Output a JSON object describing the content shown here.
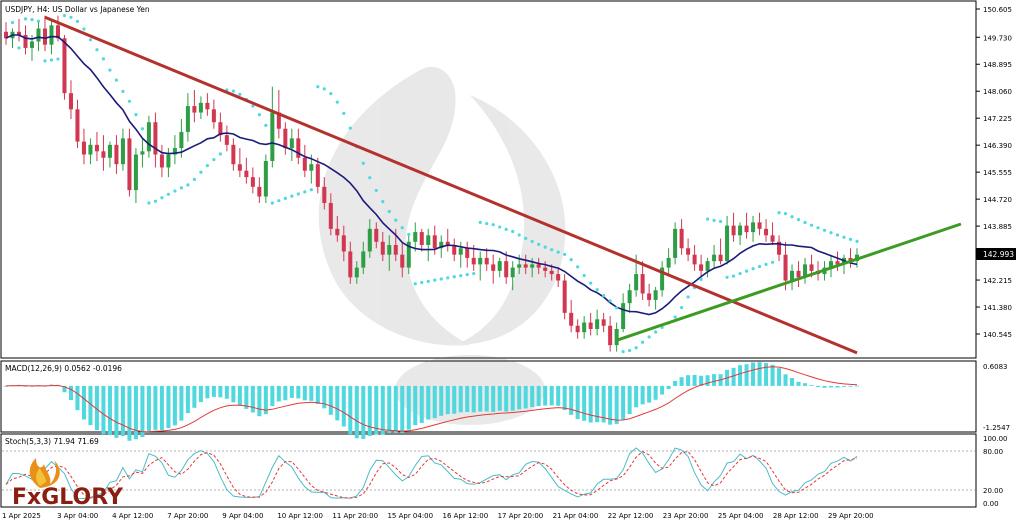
{
  "chart_data": [
    {
      "type": "candlestick",
      "title": "USDJPY, H4:  US Dollar vs Japanese Yen",
      "symbol": "USDJPY",
      "timeframe": "H4",
      "ylim": [
        139.96,
        150.605
      ],
      "y_ticks": [
        "150.605",
        "149.730",
        "148.895",
        "148.060",
        "147.225",
        "146.390",
        "145.555",
        "144.720",
        "143.885",
        "143.050",
        "142.215",
        "141.380",
        "140.545"
      ],
      "current_price": "142.993",
      "x_ticks": [
        "1 Apr 2025",
        "3 Apr 04:00",
        "4 Apr 12:00",
        "7 Apr 20:00",
        "9 Apr 04:00",
        "10 Apr 12:00",
        "11 Apr 20:00",
        "15 Apr 04:00",
        "16 Apr 12:00",
        "17 Apr 20:00",
        "21 Apr 04:00",
        "22 Apr 12:00",
        "23 Apr 20:00",
        "25 Apr 04:00",
        "28 Apr 12:00",
        "29 Apr 20:00"
      ],
      "candles": [
        {
          "o": 149.9,
          "h": 150.2,
          "l": 149.5,
          "c": 149.7
        },
        {
          "o": 149.7,
          "h": 150.0,
          "l": 149.4,
          "c": 149.9
        },
        {
          "o": 149.9,
          "h": 150.3,
          "l": 149.6,
          "c": 149.8
        },
        {
          "o": 149.8,
          "h": 150.1,
          "l": 149.2,
          "c": 149.4
        },
        {
          "o": 149.4,
          "h": 149.8,
          "l": 149.0,
          "c": 149.6
        },
        {
          "o": 149.6,
          "h": 150.2,
          "l": 149.3,
          "c": 150.0
        },
        {
          "o": 150.0,
          "h": 150.4,
          "l": 149.3,
          "c": 149.5
        },
        {
          "o": 149.5,
          "h": 150.3,
          "l": 149.2,
          "c": 150.1
        },
        {
          "o": 150.1,
          "h": 150.4,
          "l": 149.6,
          "c": 149.7
        },
        {
          "o": 149.7,
          "h": 149.8,
          "l": 147.8,
          "c": 148.0
        },
        {
          "o": 148.0,
          "h": 148.4,
          "l": 147.2,
          "c": 147.5
        },
        {
          "o": 147.5,
          "h": 147.8,
          "l": 146.3,
          "c": 146.5
        },
        {
          "o": 146.5,
          "h": 146.9,
          "l": 145.8,
          "c": 146.1
        },
        {
          "o": 146.1,
          "h": 146.6,
          "l": 145.8,
          "c": 146.4
        },
        {
          "o": 146.4,
          "h": 146.8,
          "l": 145.9,
          "c": 146.2
        },
        {
          "o": 146.2,
          "h": 146.7,
          "l": 145.6,
          "c": 146.0
        },
        {
          "o": 146.0,
          "h": 146.5,
          "l": 145.7,
          "c": 146.4
        },
        {
          "o": 146.4,
          "h": 146.7,
          "l": 145.5,
          "c": 145.8
        },
        {
          "o": 145.8,
          "h": 146.9,
          "l": 145.6,
          "c": 146.6
        },
        {
          "o": 146.6,
          "h": 146.9,
          "l": 144.8,
          "c": 145.0
        },
        {
          "o": 145.0,
          "h": 146.3,
          "l": 144.6,
          "c": 146.1
        },
        {
          "o": 146.1,
          "h": 146.6,
          "l": 145.7,
          "c": 146.2
        },
        {
          "o": 146.2,
          "h": 147.3,
          "l": 146.0,
          "c": 147.1
        },
        {
          "o": 147.1,
          "h": 147.4,
          "l": 145.7,
          "c": 146.1
        },
        {
          "o": 146.1,
          "h": 146.4,
          "l": 145.4,
          "c": 145.7
        },
        {
          "o": 145.7,
          "h": 146.3,
          "l": 145.4,
          "c": 146.1
        },
        {
          "o": 146.1,
          "h": 146.7,
          "l": 145.8,
          "c": 146.3
        },
        {
          "o": 146.3,
          "h": 147.2,
          "l": 146.0,
          "c": 146.8
        },
        {
          "o": 146.8,
          "h": 148.0,
          "l": 146.5,
          "c": 147.6
        },
        {
          "o": 147.6,
          "h": 148.1,
          "l": 147.1,
          "c": 147.4
        },
        {
          "o": 147.4,
          "h": 147.9,
          "l": 147.2,
          "c": 147.7
        },
        {
          "o": 147.7,
          "h": 148.0,
          "l": 147.3,
          "c": 147.5
        },
        {
          "o": 147.5,
          "h": 147.8,
          "l": 146.9,
          "c": 147.1
        },
        {
          "o": 147.1,
          "h": 147.4,
          "l": 146.5,
          "c": 146.7
        },
        {
          "o": 146.7,
          "h": 147.0,
          "l": 146.2,
          "c": 146.4
        },
        {
          "o": 146.4,
          "h": 146.6,
          "l": 145.6,
          "c": 145.8
        },
        {
          "o": 145.8,
          "h": 146.3,
          "l": 145.4,
          "c": 145.6
        },
        {
          "o": 145.6,
          "h": 146.0,
          "l": 145.2,
          "c": 145.4
        },
        {
          "o": 145.4,
          "h": 145.7,
          "l": 144.9,
          "c": 145.1
        },
        {
          "o": 145.1,
          "h": 145.4,
          "l": 144.6,
          "c": 144.8
        },
        {
          "o": 144.8,
          "h": 146.1,
          "l": 144.6,
          "c": 145.9
        },
        {
          "o": 145.9,
          "h": 148.2,
          "l": 145.7,
          "c": 147.4
        },
        {
          "o": 147.4,
          "h": 148.1,
          "l": 146.6,
          "c": 146.9
        },
        {
          "o": 146.9,
          "h": 147.1,
          "l": 146.1,
          "c": 146.3
        },
        {
          "o": 146.3,
          "h": 146.9,
          "l": 145.9,
          "c": 146.6
        },
        {
          "o": 146.6,
          "h": 146.9,
          "l": 145.8,
          "c": 146.0
        },
        {
          "o": 146.0,
          "h": 146.4,
          "l": 145.4,
          "c": 145.6
        },
        {
          "o": 145.6,
          "h": 146.1,
          "l": 145.2,
          "c": 145.8
        },
        {
          "o": 145.8,
          "h": 146.0,
          "l": 144.9,
          "c": 145.1
        },
        {
          "o": 145.1,
          "h": 145.4,
          "l": 144.4,
          "c": 144.6
        },
        {
          "o": 144.6,
          "h": 144.9,
          "l": 143.6,
          "c": 143.8
        },
        {
          "o": 143.8,
          "h": 144.2,
          "l": 143.4,
          "c": 143.6
        },
        {
          "o": 143.6,
          "h": 143.9,
          "l": 142.8,
          "c": 143.1
        },
        {
          "o": 143.1,
          "h": 143.4,
          "l": 142.1,
          "c": 142.3
        },
        {
          "o": 142.3,
          "h": 142.8,
          "l": 142.1,
          "c": 142.6
        },
        {
          "o": 142.6,
          "h": 143.4,
          "l": 142.4,
          "c": 143.1
        },
        {
          "o": 143.1,
          "h": 144.1,
          "l": 142.9,
          "c": 143.8
        },
        {
          "o": 143.8,
          "h": 144.0,
          "l": 143.2,
          "c": 143.4
        },
        {
          "o": 143.4,
          "h": 143.7,
          "l": 142.8,
          "c": 143.0
        },
        {
          "o": 143.0,
          "h": 143.6,
          "l": 142.5,
          "c": 143.3
        },
        {
          "o": 143.3,
          "h": 143.8,
          "l": 142.8,
          "c": 143.0
        },
        {
          "o": 143.0,
          "h": 143.4,
          "l": 142.3,
          "c": 142.6
        },
        {
          "o": 142.6,
          "h": 143.6,
          "l": 142.4,
          "c": 143.4
        },
        {
          "o": 143.4,
          "h": 144.0,
          "l": 143.1,
          "c": 143.7
        },
        {
          "o": 143.7,
          "h": 143.8,
          "l": 143.1,
          "c": 143.3
        },
        {
          "o": 143.3,
          "h": 143.8,
          "l": 142.8,
          "c": 143.6
        },
        {
          "o": 143.6,
          "h": 143.9,
          "l": 143.0,
          "c": 143.2
        },
        {
          "o": 143.2,
          "h": 143.6,
          "l": 142.9,
          "c": 143.4
        },
        {
          "o": 143.4,
          "h": 143.8,
          "l": 143.1,
          "c": 143.3
        },
        {
          "o": 143.3,
          "h": 143.5,
          "l": 142.8,
          "c": 143.0
        },
        {
          "o": 143.0,
          "h": 143.4,
          "l": 142.6,
          "c": 143.2
        },
        {
          "o": 143.2,
          "h": 143.4,
          "l": 142.6,
          "c": 142.9
        },
        {
          "o": 142.9,
          "h": 143.3,
          "l": 142.5,
          "c": 142.7
        },
        {
          "o": 142.7,
          "h": 143.1,
          "l": 142.2,
          "c": 142.9
        },
        {
          "o": 142.9,
          "h": 143.2,
          "l": 142.5,
          "c": 142.7
        },
        {
          "o": 142.7,
          "h": 143.0,
          "l": 142.1,
          "c": 142.5
        },
        {
          "o": 142.5,
          "h": 142.9,
          "l": 142.3,
          "c": 142.8
        },
        {
          "o": 142.8,
          "h": 143.1,
          "l": 142.1,
          "c": 142.3
        },
        {
          "o": 142.3,
          "h": 142.8,
          "l": 141.9,
          "c": 142.6
        },
        {
          "o": 142.6,
          "h": 143.0,
          "l": 142.4,
          "c": 142.7
        },
        {
          "o": 142.7,
          "h": 143.0,
          "l": 142.4,
          "c": 142.6
        },
        {
          "o": 142.6,
          "h": 142.9,
          "l": 142.3,
          "c": 142.7
        },
        {
          "o": 142.7,
          "h": 142.9,
          "l": 142.4,
          "c": 142.6
        },
        {
          "o": 142.6,
          "h": 142.8,
          "l": 142.3,
          "c": 142.5
        },
        {
          "o": 142.5,
          "h": 142.7,
          "l": 142.2,
          "c": 142.4
        },
        {
          "o": 142.4,
          "h": 142.6,
          "l": 142.0,
          "c": 142.2
        },
        {
          "o": 142.2,
          "h": 142.4,
          "l": 141.0,
          "c": 141.2
        },
        {
          "o": 141.2,
          "h": 141.6,
          "l": 140.6,
          "c": 140.8
        },
        {
          "o": 140.8,
          "h": 141.0,
          "l": 140.4,
          "c": 140.6
        },
        {
          "o": 140.6,
          "h": 141.1,
          "l": 140.4,
          "c": 140.9
        },
        {
          "o": 140.9,
          "h": 141.2,
          "l": 140.5,
          "c": 140.7
        },
        {
          "o": 140.7,
          "h": 141.3,
          "l": 140.5,
          "c": 141.0
        },
        {
          "o": 141.0,
          "h": 141.2,
          "l": 140.6,
          "c": 140.8
        },
        {
          "o": 140.8,
          "h": 141.1,
          "l": 140.0,
          "c": 140.2
        },
        {
          "o": 140.2,
          "h": 140.9,
          "l": 140.0,
          "c": 140.7
        },
        {
          "o": 140.7,
          "h": 141.8,
          "l": 140.6,
          "c": 141.5
        },
        {
          "o": 141.5,
          "h": 142.1,
          "l": 141.2,
          "c": 141.9
        },
        {
          "o": 141.9,
          "h": 143.0,
          "l": 141.7,
          "c": 142.4
        },
        {
          "o": 142.4,
          "h": 142.8,
          "l": 141.6,
          "c": 141.8
        },
        {
          "o": 141.8,
          "h": 142.1,
          "l": 141.4,
          "c": 141.6
        },
        {
          "o": 141.6,
          "h": 142.0,
          "l": 141.3,
          "c": 141.9
        },
        {
          "o": 141.9,
          "h": 142.8,
          "l": 141.7,
          "c": 142.6
        },
        {
          "o": 142.6,
          "h": 143.2,
          "l": 142.4,
          "c": 142.9
        },
        {
          "o": 142.9,
          "h": 144.0,
          "l": 142.7,
          "c": 143.8
        },
        {
          "o": 143.8,
          "h": 144.1,
          "l": 143.0,
          "c": 143.2
        },
        {
          "o": 143.2,
          "h": 143.5,
          "l": 142.8,
          "c": 143.0
        },
        {
          "o": 143.0,
          "h": 143.3,
          "l": 142.5,
          "c": 142.7
        },
        {
          "o": 142.7,
          "h": 143.0,
          "l": 142.3,
          "c": 142.5
        },
        {
          "o": 142.5,
          "h": 142.9,
          "l": 142.3,
          "c": 142.8
        },
        {
          "o": 142.8,
          "h": 143.3,
          "l": 142.6,
          "c": 143.0
        },
        {
          "o": 143.0,
          "h": 143.5,
          "l": 142.7,
          "c": 142.8
        },
        {
          "o": 142.8,
          "h": 144.2,
          "l": 142.7,
          "c": 143.9
        },
        {
          "o": 143.9,
          "h": 144.3,
          "l": 143.4,
          "c": 143.6
        },
        {
          "o": 143.6,
          "h": 144.0,
          "l": 143.3,
          "c": 143.9
        },
        {
          "o": 143.9,
          "h": 144.3,
          "l": 143.5,
          "c": 143.7
        },
        {
          "o": 143.7,
          "h": 144.2,
          "l": 143.4,
          "c": 144.0
        },
        {
          "o": 144.0,
          "h": 144.3,
          "l": 143.6,
          "c": 143.8
        },
        {
          "o": 143.8,
          "h": 144.1,
          "l": 143.4,
          "c": 143.6
        },
        {
          "o": 143.6,
          "h": 144.0,
          "l": 143.3,
          "c": 143.4
        },
        {
          "o": 143.4,
          "h": 143.6,
          "l": 142.8,
          "c": 143.0
        },
        {
          "o": 143.0,
          "h": 143.4,
          "l": 141.9,
          "c": 142.2
        },
        {
          "o": 142.2,
          "h": 142.7,
          "l": 141.9,
          "c": 142.5
        },
        {
          "o": 142.5,
          "h": 142.8,
          "l": 142.0,
          "c": 142.3
        },
        {
          "o": 142.3,
          "h": 142.9,
          "l": 142.1,
          "c": 142.7
        },
        {
          "o": 142.7,
          "h": 143.0,
          "l": 142.3,
          "c": 142.5
        },
        {
          "o": 142.5,
          "h": 142.8,
          "l": 142.2,
          "c": 142.4
        },
        {
          "o": 142.4,
          "h": 142.8,
          "l": 142.2,
          "c": 142.6
        },
        {
          "o": 142.6,
          "h": 143.0,
          "l": 142.3,
          "c": 142.8
        },
        {
          "o": 142.8,
          "h": 143.1,
          "l": 142.5,
          "c": 142.7
        },
        {
          "o": 142.7,
          "h": 143.0,
          "l": 142.4,
          "c": 142.9
        },
        {
          "o": 142.9,
          "h": 143.2,
          "l": 142.6,
          "c": 142.8
        },
        {
          "o": 142.8,
          "h": 143.2,
          "l": 142.6,
          "c": 143.0
        }
      ],
      "colors": {
        "bull": "#2e9e46",
        "bear": "#d23752",
        "ma": "#1b1b7a",
        "sar": "#4fd8de",
        "down_trend": "#b3322e",
        "up_trend": "#3d9a24"
      }
    },
    {
      "type": "histogram",
      "title": "MACD(12,26,9) 0.0562 -0.0196",
      "ylim": [
        -1.2547,
        0.6083
      ],
      "y_ticks": [
        "0.6083",
        "-1.2547"
      ]
    },
    {
      "type": "line",
      "title": "Stoch(5,3,3) 71.94 71.69",
      "ylim": [
        0,
        100
      ],
      "y_ticks": [
        "100.00",
        "80.00",
        "20.00",
        "0.00"
      ],
      "levels": [
        80,
        20
      ]
    }
  ],
  "watermark": "FxGlory"
}
